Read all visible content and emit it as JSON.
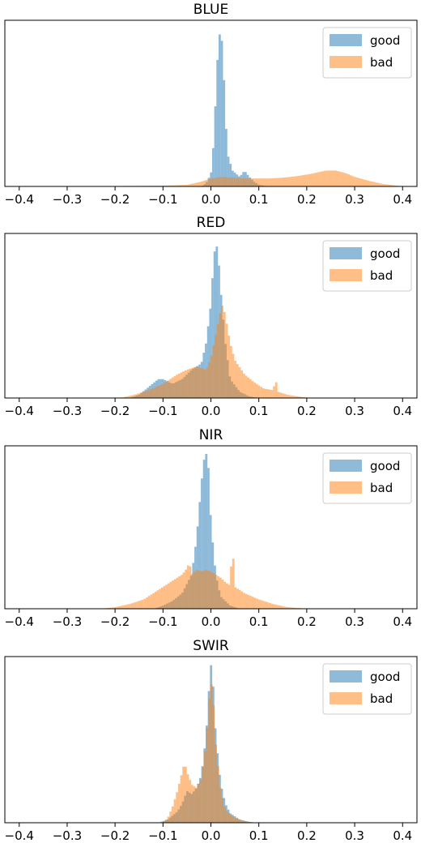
{
  "colors": {
    "good": "#1f77b4",
    "bad": "#ff7f0e"
  },
  "chart_data": [
    {
      "type": "histogram",
      "title": "BLUE",
      "xlim": [
        -0.43,
        0.43
      ],
      "x_ticks": [
        "−0.4",
        "−0.3",
        "−0.2",
        "−0.1",
        "0.0",
        "0.1",
        "0.2",
        "0.3",
        "0.4"
      ],
      "legend_position": "top-right",
      "series": [
        {
          "name": "good",
          "points": [
            [
              -0.02,
              0
            ],
            [
              -0.01,
              0.02
            ],
            [
              0.0,
              0.08
            ],
            [
              0.005,
              0.25
            ],
            [
              0.01,
              0.55
            ],
            [
              0.015,
              0.88
            ],
            [
              0.02,
              1.0
            ],
            [
              0.025,
              0.85
            ],
            [
              0.03,
              0.45
            ],
            [
              0.035,
              0.2
            ],
            [
              0.045,
              0.1
            ],
            [
              0.06,
              0.06
            ],
            [
              0.07,
              0.1
            ],
            [
              0.08,
              0.06
            ],
            [
              0.09,
              0.03
            ],
            [
              0.1,
              0.01
            ],
            [
              0.12,
              0
            ]
          ]
        },
        {
          "name": "bad",
          "points": [
            [
              -0.3,
              0
            ],
            [
              -0.1,
              0.005
            ],
            [
              -0.05,
              0.01
            ],
            [
              -0.02,
              0.03
            ],
            [
              0.0,
              0.05
            ],
            [
              0.02,
              0.06
            ],
            [
              0.05,
              0.055
            ],
            [
              0.08,
              0.05
            ],
            [
              0.12,
              0.05
            ],
            [
              0.15,
              0.055
            ],
            [
              0.18,
              0.065
            ],
            [
              0.21,
              0.08
            ],
            [
              0.24,
              0.1
            ],
            [
              0.26,
              0.1
            ],
            [
              0.28,
              0.085
            ],
            [
              0.3,
              0.06
            ],
            [
              0.33,
              0.035
            ],
            [
              0.36,
              0.015
            ],
            [
              0.39,
              0.004
            ],
            [
              0.41,
              0
            ]
          ]
        }
      ]
    },
    {
      "type": "histogram",
      "title": "RED",
      "xlim": [
        -0.43,
        0.43
      ],
      "x_ticks": [
        "−0.4",
        "−0.3",
        "−0.2",
        "−0.1",
        "0.0",
        "0.1",
        "0.2",
        "0.3",
        "0.4"
      ],
      "legend_position": "top-right",
      "series": [
        {
          "name": "good",
          "points": [
            [
              -0.17,
              0
            ],
            [
              -0.15,
              0.02
            ],
            [
              -0.13,
              0.07
            ],
            [
              -0.11,
              0.12
            ],
            [
              -0.1,
              0.12
            ],
            [
              -0.08,
              0.09
            ],
            [
              -0.06,
              0.12
            ],
            [
              -0.04,
              0.18
            ],
            [
              -0.03,
              0.2
            ],
            [
              -0.02,
              0.22
            ],
            [
              -0.01,
              0.35
            ],
            [
              0.0,
              0.6
            ],
            [
              0.005,
              0.85
            ],
            [
              0.01,
              1.0
            ],
            [
              0.015,
              0.92
            ],
            [
              0.02,
              0.7
            ],
            [
              0.03,
              0.35
            ],
            [
              0.04,
              0.12
            ],
            [
              0.06,
              0.04
            ],
            [
              0.08,
              0.01
            ],
            [
              0.1,
              0
            ]
          ]
        },
        {
          "name": "bad",
          "points": [
            [
              -0.19,
              0
            ],
            [
              -0.16,
              0.02
            ],
            [
              -0.13,
              0.05
            ],
            [
              -0.1,
              0.09
            ],
            [
              -0.07,
              0.15
            ],
            [
              -0.05,
              0.18
            ],
            [
              -0.03,
              0.2
            ],
            [
              -0.01,
              0.18
            ],
            [
              0.0,
              0.25
            ],
            [
              0.01,
              0.4
            ],
            [
              0.02,
              0.55
            ],
            [
              0.025,
              0.6
            ],
            [
              0.03,
              0.52
            ],
            [
              0.04,
              0.35
            ],
            [
              0.05,
              0.24
            ],
            [
              0.07,
              0.15
            ],
            [
              0.09,
              0.1
            ],
            [
              0.11,
              0.06
            ],
            [
              0.13,
              0.05
            ],
            [
              0.135,
              0.12
            ],
            [
              0.14,
              0.04
            ],
            [
              0.16,
              0.02
            ],
            [
              0.19,
              0.006
            ],
            [
              0.21,
              0
            ]
          ]
        }
      ]
    },
    {
      "type": "histogram",
      "title": "NIR",
      "xlim": [
        -0.43,
        0.43
      ],
      "x_ticks": [
        "−0.4",
        "−0.3",
        "−0.2",
        "−0.1",
        "0.0",
        "0.1",
        "0.2",
        "0.3",
        "0.4"
      ],
      "legend_position": "top-right",
      "series": [
        {
          "name": "good",
          "points": [
            [
              -0.12,
              0
            ],
            [
              -0.1,
              0.02
            ],
            [
              -0.08,
              0.05
            ],
            [
              -0.06,
              0.1
            ],
            [
              -0.04,
              0.22
            ],
            [
              -0.03,
              0.45
            ],
            [
              -0.02,
              0.8
            ],
            [
              -0.015,
              0.95
            ],
            [
              -0.01,
              1.0
            ],
            [
              -0.005,
              0.9
            ],
            [
              0.0,
              0.55
            ],
            [
              0.01,
              0.22
            ],
            [
              0.02,
              0.08
            ],
            [
              0.04,
              0.02
            ],
            [
              0.06,
              0
            ]
          ]
        },
        {
          "name": "bad",
          "points": [
            [
              -0.23,
              0
            ],
            [
              -0.2,
              0.01
            ],
            [
              -0.17,
              0.03
            ],
            [
              -0.14,
              0.06
            ],
            [
              -0.12,
              0.1
            ],
            [
              -0.1,
              0.14
            ],
            [
              -0.08,
              0.18
            ],
            [
              -0.06,
              0.22
            ],
            [
              -0.05,
              0.26
            ],
            [
              -0.045,
              0.3
            ],
            [
              -0.04,
              0.22
            ],
            [
              -0.03,
              0.25
            ],
            [
              -0.02,
              0.24
            ],
            [
              -0.01,
              0.25
            ],
            [
              0.0,
              0.24
            ],
            [
              0.01,
              0.22
            ],
            [
              0.02,
              0.2
            ],
            [
              0.03,
              0.17
            ],
            [
              0.04,
              0.15
            ],
            [
              0.045,
              0.42
            ],
            [
              0.05,
              0.14
            ],
            [
              0.07,
              0.1
            ],
            [
              0.1,
              0.06
            ],
            [
              0.13,
              0.03
            ],
            [
              0.16,
              0.01
            ],
            [
              0.19,
              0.003
            ],
            [
              0.21,
              0
            ]
          ]
        }
      ]
    },
    {
      "type": "histogram",
      "title": "SWIR",
      "xlim": [
        -0.43,
        0.43
      ],
      "x_ticks": [
        "−0.4",
        "−0.3",
        "−0.2",
        "−0.1",
        "0.0",
        "0.1",
        "0.2",
        "0.3",
        "0.4"
      ],
      "legend_position": "top-right",
      "series": [
        {
          "name": "good",
          "points": [
            [
              -0.11,
              0
            ],
            [
              -0.09,
              0.02
            ],
            [
              -0.07,
              0.07
            ],
            [
              -0.06,
              0.12
            ],
            [
              -0.05,
              0.2
            ],
            [
              -0.04,
              0.18
            ],
            [
              -0.03,
              0.22
            ],
            [
              -0.02,
              0.3
            ],
            [
              -0.01,
              0.55
            ],
            [
              -0.005,
              0.8
            ],
            [
              0.0,
              1.0
            ],
            [
              0.005,
              0.85
            ],
            [
              0.01,
              0.55
            ],
            [
              0.02,
              0.25
            ],
            [
              0.03,
              0.12
            ],
            [
              0.04,
              0.06
            ],
            [
              0.06,
              0.02
            ],
            [
              0.08,
              0.005
            ],
            [
              0.1,
              0
            ]
          ]
        },
        {
          "name": "bad",
          "points": [
            [
              -0.1,
              0
            ],
            [
              -0.09,
              0.03
            ],
            [
              -0.08,
              0.1
            ],
            [
              -0.07,
              0.2
            ],
            [
              -0.06,
              0.32
            ],
            [
              -0.055,
              0.38
            ],
            [
              -0.05,
              0.32
            ],
            [
              -0.04,
              0.24
            ],
            [
              -0.03,
              0.22
            ],
            [
              -0.02,
              0.28
            ],
            [
              -0.01,
              0.5
            ],
            [
              -0.005,
              0.72
            ],
            [
              0.0,
              0.9
            ],
            [
              0.005,
              0.78
            ],
            [
              0.01,
              0.5
            ],
            [
              0.02,
              0.2
            ],
            [
              0.03,
              0.08
            ],
            [
              0.05,
              0.03
            ],
            [
              0.07,
              0.01
            ],
            [
              0.09,
              0
            ]
          ]
        }
      ]
    }
  ]
}
